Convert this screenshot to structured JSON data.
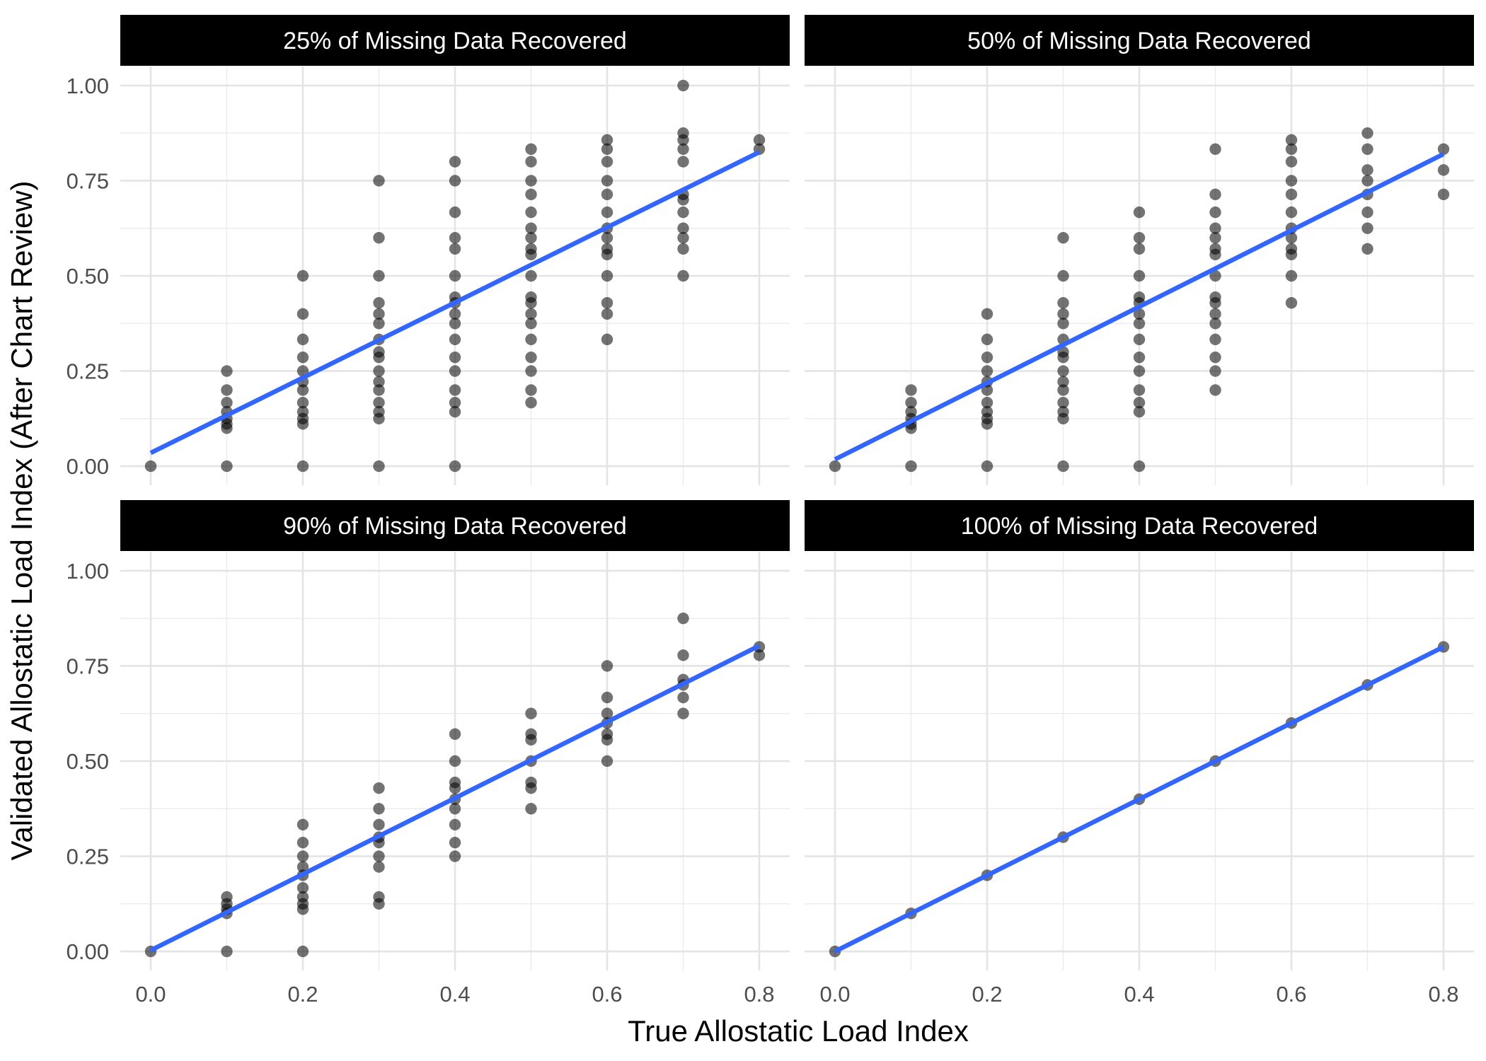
{
  "chart_data": {
    "type": "scatter",
    "xlabel": "True Allostatic Load Index",
    "ylabel": "Validated Allostatic Load Index (After Chart Review)",
    "xlim": [
      -0.04,
      0.84
    ],
    "ylim": [
      -0.05,
      1.05
    ],
    "x_ticks": [
      0.0,
      0.2,
      0.4,
      0.6,
      0.8
    ],
    "x_tick_labels": [
      "0.0",
      "0.2",
      "0.4",
      "0.6",
      "0.8"
    ],
    "y_ticks": [
      0.0,
      0.25,
      0.5,
      0.75,
      1.0
    ],
    "y_tick_labels": [
      "0.00",
      "0.25",
      "0.50",
      "0.75",
      "1.00"
    ],
    "grid": true,
    "point_color": "#000000",
    "line_color": "#3366FF",
    "strip_color": "#000000",
    "panels": [
      {
        "title": "25% of Missing Data Recovered",
        "fit_line": {
          "x": [
            0.0,
            0.8
          ],
          "y": [
            0.035,
            0.825
          ]
        },
        "points": {
          "0.0": [
            0.0
          ],
          "0.1": [
            0.0,
            0.1,
            0.111,
            0.125,
            0.143,
            0.167,
            0.2,
            0.25
          ],
          "0.2": [
            0.0,
            0.111,
            0.125,
            0.143,
            0.167,
            0.2,
            0.222,
            0.25,
            0.286,
            0.333,
            0.4,
            0.5
          ],
          "0.3": [
            0.0,
            0.125,
            0.143,
            0.167,
            0.2,
            0.222,
            0.25,
            0.286,
            0.3,
            0.333,
            0.375,
            0.4,
            0.429,
            0.5,
            0.6,
            0.75
          ],
          "0.4": [
            0.0,
            0.143,
            0.167,
            0.2,
            0.25,
            0.286,
            0.333,
            0.375,
            0.4,
            0.429,
            0.444,
            0.5,
            0.571,
            0.6,
            0.667,
            0.75,
            0.8
          ],
          "0.5": [
            0.167,
            0.2,
            0.25,
            0.286,
            0.333,
            0.375,
            0.4,
            0.429,
            0.444,
            0.5,
            0.556,
            0.571,
            0.6,
            0.625,
            0.667,
            0.714,
            0.75,
            0.8,
            0.833
          ],
          "0.6": [
            0.333,
            0.4,
            0.429,
            0.5,
            0.556,
            0.571,
            0.6,
            0.625,
            0.667,
            0.714,
            0.75,
            0.8,
            0.833,
            0.857
          ],
          "0.7": [
            0.5,
            0.571,
            0.6,
            0.625,
            0.667,
            0.7,
            0.714,
            0.8,
            0.833,
            0.857,
            0.875,
            1.0
          ],
          "0.8": [
            0.833,
            0.857
          ]
        }
      },
      {
        "title": "50% of Missing Data Recovered",
        "fit_line": {
          "x": [
            0.0,
            0.8
          ],
          "y": [
            0.018,
            0.82
          ]
        },
        "points": {
          "0.0": [
            0.0
          ],
          "0.1": [
            0.0,
            0.1,
            0.111,
            0.125,
            0.143,
            0.167,
            0.2
          ],
          "0.2": [
            0.0,
            0.111,
            0.125,
            0.143,
            0.167,
            0.2,
            0.222,
            0.25,
            0.286,
            0.333,
            0.4
          ],
          "0.3": [
            0.0,
            0.125,
            0.143,
            0.167,
            0.2,
            0.222,
            0.25,
            0.286,
            0.3,
            0.333,
            0.375,
            0.4,
            0.429,
            0.5,
            0.6
          ],
          "0.4": [
            0.0,
            0.143,
            0.167,
            0.2,
            0.25,
            0.286,
            0.333,
            0.375,
            0.4,
            0.429,
            0.444,
            0.5,
            0.571,
            0.6,
            0.667
          ],
          "0.5": [
            0.2,
            0.25,
            0.286,
            0.333,
            0.375,
            0.4,
            0.429,
            0.444,
            0.5,
            0.556,
            0.571,
            0.6,
            0.625,
            0.667,
            0.714,
            0.833
          ],
          "0.6": [
            0.429,
            0.5,
            0.556,
            0.571,
            0.6,
            0.625,
            0.667,
            0.714,
            0.75,
            0.8,
            0.833,
            0.857
          ],
          "0.7": [
            0.571,
            0.625,
            0.667,
            0.714,
            0.75,
            0.778,
            0.833,
            0.875
          ],
          "0.8": [
            0.714,
            0.778,
            0.833
          ]
        }
      },
      {
        "title": "90% of Missing Data Recovered",
        "fit_line": {
          "x": [
            0.0,
            0.8
          ],
          "y": [
            0.003,
            0.803
          ]
        },
        "points": {
          "0.0": [
            0.0
          ],
          "0.1": [
            0.0,
            0.1,
            0.111,
            0.125,
            0.143
          ],
          "0.2": [
            0.0,
            0.111,
            0.125,
            0.143,
            0.167,
            0.2,
            0.222,
            0.25,
            0.286,
            0.333
          ],
          "0.3": [
            0.125,
            0.143,
            0.222,
            0.25,
            0.286,
            0.3,
            0.333,
            0.375,
            0.429
          ],
          "0.4": [
            0.25,
            0.286,
            0.333,
            0.375,
            0.4,
            0.429,
            0.444,
            0.5,
            0.571
          ],
          "0.5": [
            0.375,
            0.429,
            0.444,
            0.5,
            0.556,
            0.571,
            0.625
          ],
          "0.6": [
            0.5,
            0.556,
            0.571,
            0.6,
            0.625,
            0.667,
            0.75
          ],
          "0.7": [
            0.625,
            0.667,
            0.7,
            0.714,
            0.778,
            0.875
          ],
          "0.8": [
            0.778,
            0.8
          ]
        }
      },
      {
        "title": "100% of Missing Data Recovered",
        "fit_line": {
          "x": [
            0.0,
            0.8
          ],
          "y": [
            0.0,
            0.8
          ]
        },
        "points": {
          "0.0": [
            0.0
          ],
          "0.1": [
            0.1
          ],
          "0.2": [
            0.2
          ],
          "0.3": [
            0.3
          ],
          "0.4": [
            0.4
          ],
          "0.5": [
            0.5
          ],
          "0.6": [
            0.6
          ],
          "0.7": [
            0.7
          ],
          "0.8": [
            0.8
          ]
        }
      }
    ]
  }
}
